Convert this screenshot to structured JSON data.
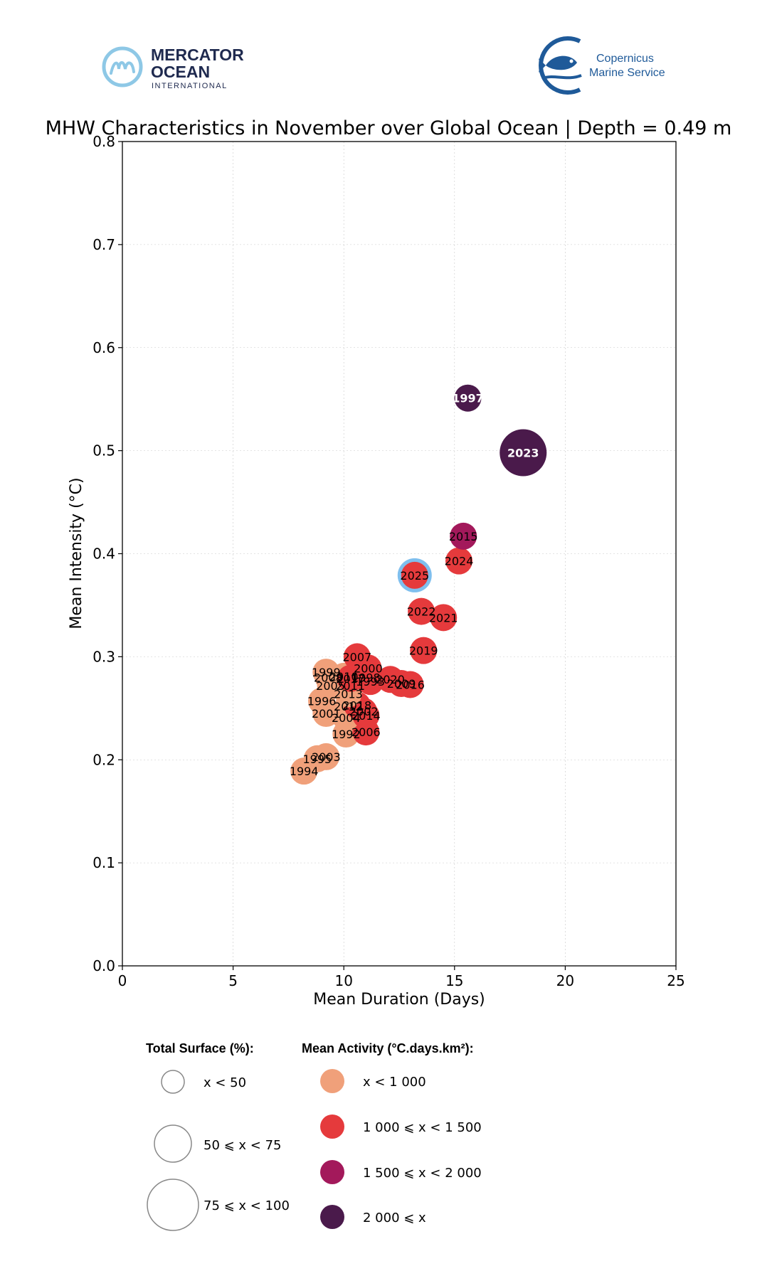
{
  "logos": {
    "mercator": {
      "line1": "MERCATOR",
      "line2": "OCEAN",
      "line3": "INTERNATIONAL"
    },
    "copernicus": {
      "line1": "Copernicus",
      "line2": "Marine Service"
    }
  },
  "colors": {
    "cat_lt_1000": "#f0a07a",
    "cat_1000_1500": "#e53a3c",
    "cat_1500_2000": "#a3195b",
    "cat_ge_2000": "#4a1a4b",
    "highlight_ring": "#7fbfee",
    "mercator_blue": "#1f2a4f",
    "copernicus_blue": "#1f5a99"
  },
  "chart_data": {
    "type": "scatter",
    "title": "MHW Characteristics in November over Global Ocean | Depth = 0.49 m",
    "xlabel": "Mean Duration (Days)",
    "ylabel": "Mean Intensity (°C)",
    "xlim": [
      0,
      25
    ],
    "ylim": [
      0,
      0.8
    ],
    "xticks": [
      "0",
      "5",
      "10",
      "15",
      "20",
      "25"
    ],
    "yticks": [
      "0.0",
      "0.1",
      "0.2",
      "0.3",
      "0.4",
      "0.5",
      "0.6",
      "0.7",
      "0.8"
    ],
    "grid": true,
    "highlight": "2025",
    "points": [
      {
        "label": "1994",
        "x": 8.2,
        "y": 0.189,
        "size": 0,
        "activity": 0
      },
      {
        "label": "1995",
        "x": 8.8,
        "y": 0.201,
        "size": 0,
        "activity": 0
      },
      {
        "label": "2003",
        "x": 9.2,
        "y": 0.203,
        "size": 0,
        "activity": 0
      },
      {
        "label": "1992",
        "x": 10.1,
        "y": 0.225,
        "size": 0,
        "activity": 0
      },
      {
        "label": "2006",
        "x": 11.0,
        "y": 0.227,
        "size": 0,
        "activity": 1
      },
      {
        "label": "2001",
        "x": 9.2,
        "y": 0.245,
        "size": 0,
        "activity": 0
      },
      {
        "label": "2004",
        "x": 10.1,
        "y": 0.241,
        "size": 0,
        "activity": 0
      },
      {
        "label": "2014",
        "x": 11.0,
        "y": 0.243,
        "size": 0,
        "activity": 1
      },
      {
        "label": "2012",
        "x": 10.2,
        "y": 0.252,
        "size": 0,
        "activity": 0
      },
      {
        "label": "2018",
        "x": 10.6,
        "y": 0.253,
        "size": 0,
        "activity": 1
      },
      {
        "label": "2002",
        "x": 10.9,
        "y": 0.247,
        "size": 0,
        "activity": 1
      },
      {
        "label": "1996",
        "x": 9.0,
        "y": 0.257,
        "size": 0,
        "activity": 0
      },
      {
        "label": "2013",
        "x": 10.2,
        "y": 0.264,
        "size": 0,
        "activity": 0
      },
      {
        "label": "2005",
        "x": 9.4,
        "y": 0.272,
        "size": 0,
        "activity": 0
      },
      {
        "label": "2011",
        "x": 10.3,
        "y": 0.272,
        "size": 0,
        "activity": 0
      },
      {
        "label": "2008",
        "x": 9.3,
        "y": 0.28,
        "size": 0,
        "activity": 0
      },
      {
        "label": "1999",
        "x": 9.2,
        "y": 0.285,
        "size": 0,
        "activity": 0
      },
      {
        "label": "2010",
        "x": 10.0,
        "y": 0.281,
        "size": 0,
        "activity": 0
      },
      {
        "label": "2017",
        "x": 10.3,
        "y": 0.279,
        "size": 0,
        "activity": 1
      },
      {
        "label": "1993",
        "x": 11.2,
        "y": 0.276,
        "size": 0,
        "activity": 1
      },
      {
        "label": "1998",
        "x": 11.0,
        "y": 0.28,
        "size": 0,
        "activity": 1
      },
      {
        "label": "2000",
        "x": 11.1,
        "y": 0.289,
        "size": 0,
        "activity": 1
      },
      {
        "label": "2007",
        "x": 10.6,
        "y": 0.3,
        "size": 0,
        "activity": 1
      },
      {
        "label": "2020",
        "x": 12.1,
        "y": 0.278,
        "size": 0,
        "activity": 1
      },
      {
        "label": "2009",
        "x": 12.6,
        "y": 0.274,
        "size": 0,
        "activity": 1
      },
      {
        "label": "2016",
        "x": 13.0,
        "y": 0.273,
        "size": 0,
        "activity": 1
      },
      {
        "label": "2019",
        "x": 13.6,
        "y": 0.306,
        "size": 0,
        "activity": 1
      },
      {
        "label": "2021",
        "x": 14.5,
        "y": 0.338,
        "size": 0,
        "activity": 1
      },
      {
        "label": "2022",
        "x": 13.5,
        "y": 0.344,
        "size": 0,
        "activity": 1
      },
      {
        "label": "2025",
        "x": 13.2,
        "y": 0.379,
        "size": 0,
        "activity": 1
      },
      {
        "label": "2024",
        "x": 15.2,
        "y": 0.393,
        "size": 0,
        "activity": 1
      },
      {
        "label": "2015",
        "x": 15.4,
        "y": 0.417,
        "size": 0,
        "activity": 2
      },
      {
        "label": "1997",
        "x": 15.6,
        "y": 0.551,
        "size": 0,
        "activity": 3
      },
      {
        "label": "2023",
        "x": 18.1,
        "y": 0.498,
        "size": 2,
        "activity": 3
      }
    ]
  },
  "legend": {
    "surface_title": "Total Surface (%):",
    "surface_items": [
      "x < 50",
      "50 ⩽ x < 75",
      "75 ⩽ x < 100"
    ],
    "activity_title": "Mean Activity (°C.days.km²):",
    "activity_items": [
      "x < 1 000",
      "1 000 ⩽ x < 1 500",
      "1 500 ⩽ x < 2 000",
      "2 000 ⩽ x"
    ]
  }
}
